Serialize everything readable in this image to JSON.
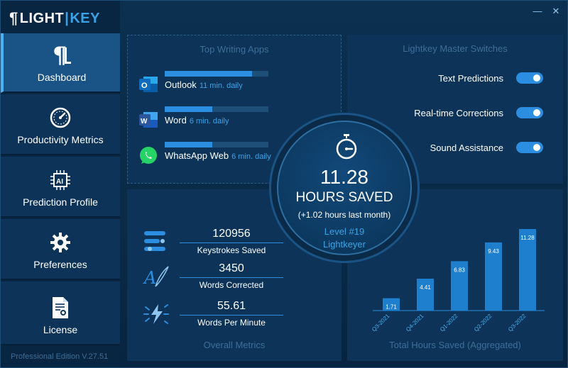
{
  "app": {
    "logo_light": "LIGHT",
    "logo_key": "KEY",
    "edition": "Professional Edition V.27.51"
  },
  "window": {
    "minimize": "—",
    "close": "✕"
  },
  "sidebar": {
    "items": [
      {
        "label": "Dashboard",
        "icon": "pilcrow-icon"
      },
      {
        "label": "Productivity Metrics",
        "icon": "gauge-icon"
      },
      {
        "label": "Prediction Profile",
        "icon": "ai-chip-icon"
      },
      {
        "label": "Preferences",
        "icon": "gear-icon"
      },
      {
        "label": "License",
        "icon": "certificate-icon"
      }
    ]
  },
  "apps_panel": {
    "title": "Top Writing Apps",
    "apps": [
      {
        "name": "Outlook",
        "time": "11 min. daily",
        "level": 0.84,
        "icon": "outlook-icon",
        "color": "#0f6cbd"
      },
      {
        "name": "Word",
        "time": "6 min. daily",
        "level": 0.46,
        "icon": "word-icon",
        "color": "#2b579a"
      },
      {
        "name": "WhatsApp Web",
        "time": "6 min. daily",
        "level": 0.46,
        "icon": "whatsapp-icon",
        "color": "#25d366"
      }
    ]
  },
  "switches_panel": {
    "title": "Lightkey Master Switches",
    "items": [
      {
        "label": "Text Predictions",
        "on": true
      },
      {
        "label": "Real-time Corrections",
        "on": true
      },
      {
        "label": "Sound Assistance",
        "on": true
      }
    ]
  },
  "center": {
    "value": "11.28",
    "label": "HOURS SAVED",
    "sub": "(+1.02 hours last month)",
    "level": "Level #19",
    "rank": "Lightkeyer"
  },
  "metrics_panel": {
    "title": "Overall Metrics",
    "items": [
      {
        "value": "120956",
        "label": "Keystrokes Saved",
        "icon": "keystrokes-icon"
      },
      {
        "value": "3450",
        "label": "Words Corrected",
        "icon": "quill-icon"
      },
      {
        "value": "55.61",
        "label": "Words Per Minute",
        "icon": "lightning-icon"
      }
    ]
  },
  "chart_data": {
    "type": "bar",
    "title": "Total Hours Saved (Aggregated)",
    "categories": [
      "Q3-2021",
      "Q4-2021",
      "Q1-2022",
      "Q2-2022",
      "Q3-2022"
    ],
    "values": [
      1.71,
      4.41,
      6.83,
      9.43,
      11.28
    ],
    "data_labels": [
      "1.71",
      "4.41",
      "6.83",
      "9.43",
      "11.28"
    ],
    "ylim": [
      0,
      11.28
    ],
    "bar_color": "#1f7fcf",
    "grid": false,
    "legend": "none"
  },
  "colors": {
    "accent": "#2b8ee0",
    "panel": "#0d3458",
    "muted": "#3d6e99"
  }
}
